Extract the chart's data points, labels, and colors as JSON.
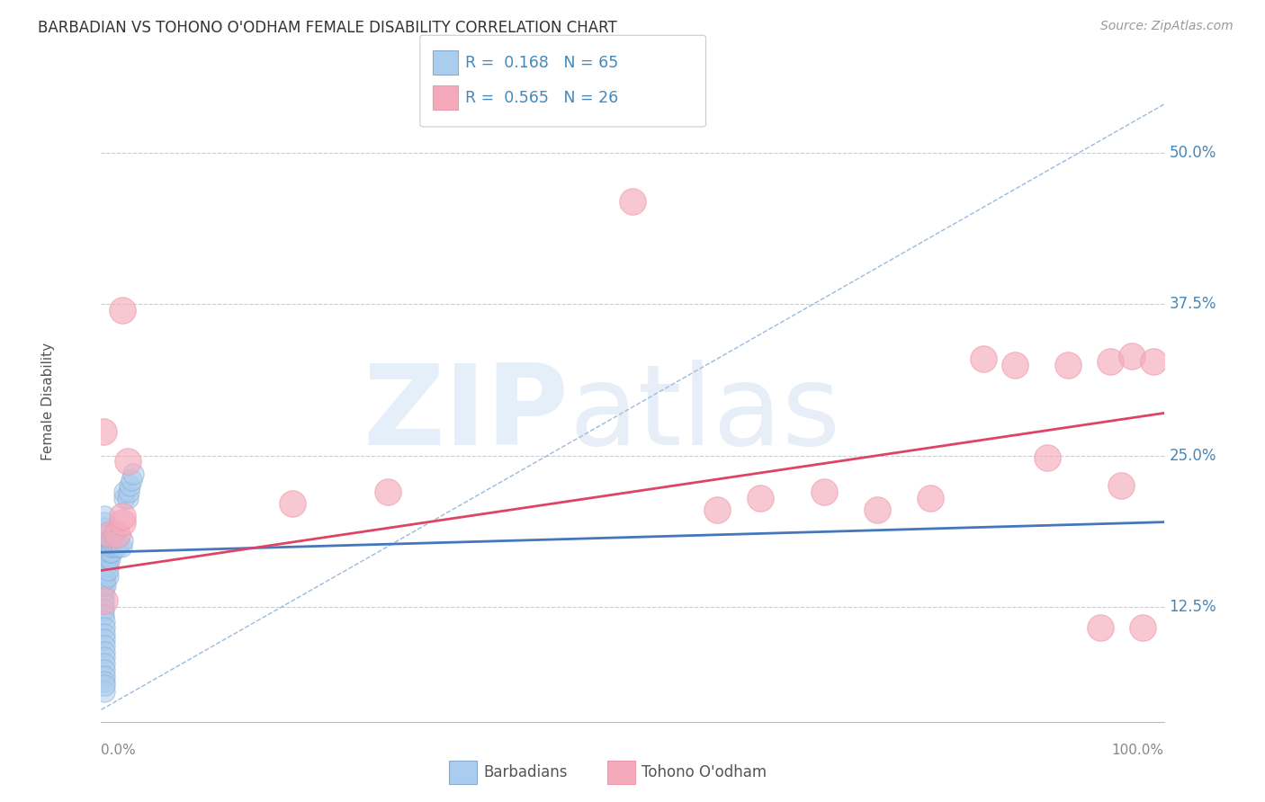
{
  "title": "BARBADIAN VS TOHONO O'ODHAM FEMALE DISABILITY CORRELATION CHART",
  "source": "Source: ZipAtlas.com",
  "ylabel": "Female Disability",
  "ytick_labels": [
    "12.5%",
    "25.0%",
    "37.5%",
    "50.0%"
  ],
  "ytick_values": [
    0.125,
    0.25,
    0.375,
    0.5
  ],
  "xmin": 0.0,
  "xmax": 1.0,
  "ymin": 0.03,
  "ymax": 0.56,
  "blue_fill": "#AACCEE",
  "blue_edge": "#88AACC",
  "pink_fill": "#F4AABB",
  "pink_edge": "#EE99AA",
  "blue_line": "#4477BB",
  "pink_line": "#DD4466",
  "diag_color": "#99BBDD",
  "legend_text_color": "#4488BB",
  "barbadians_x": [
    0.002,
    0.002,
    0.002,
    0.002,
    0.002,
    0.002,
    0.002,
    0.002,
    0.002,
    0.002,
    0.003,
    0.003,
    0.003,
    0.003,
    0.003,
    0.003,
    0.003,
    0.003,
    0.003,
    0.003,
    0.003,
    0.003,
    0.003,
    0.003,
    0.003,
    0.003,
    0.003,
    0.003,
    0.003,
    0.003,
    0.004,
    0.004,
    0.004,
    0.004,
    0.004,
    0.004,
    0.004,
    0.004,
    0.006,
    0.006,
    0.006,
    0.006,
    0.006,
    0.006,
    0.008,
    0.008,
    0.008,
    0.008,
    0.01,
    0.01,
    0.01,
    0.013,
    0.013,
    0.016,
    0.016,
    0.019,
    0.02,
    0.022,
    0.022,
    0.025,
    0.026,
    0.027,
    0.028,
    0.03
  ],
  "barbadians_y": [
    0.155,
    0.16,
    0.165,
    0.148,
    0.143,
    0.138,
    0.133,
    0.128,
    0.123,
    0.118,
    0.113,
    0.108,
    0.103,
    0.098,
    0.093,
    0.088,
    0.083,
    0.078,
    0.073,
    0.068,
    0.063,
    0.17,
    0.175,
    0.18,
    0.185,
    0.19,
    0.195,
    0.2,
    0.055,
    0.06,
    0.158,
    0.163,
    0.168,
    0.173,
    0.178,
    0.153,
    0.148,
    0.143,
    0.16,
    0.165,
    0.17,
    0.175,
    0.15,
    0.155,
    0.165,
    0.17,
    0.175,
    0.18,
    0.17,
    0.175,
    0.18,
    0.175,
    0.18,
    0.175,
    0.18,
    0.175,
    0.18,
    0.215,
    0.22,
    0.215,
    0.22,
    0.225,
    0.23,
    0.235
  ],
  "tohono_x": [
    0.002,
    0.003,
    0.008,
    0.015,
    0.02,
    0.02,
    0.02,
    0.025,
    0.18,
    0.5,
    0.58,
    0.62,
    0.68,
    0.73,
    0.78,
    0.83,
    0.86,
    0.89,
    0.91,
    0.94,
    0.95,
    0.96,
    0.97,
    0.98,
    0.99,
    0.27
  ],
  "tohono_y": [
    0.27,
    0.13,
    0.185,
    0.185,
    0.195,
    0.2,
    0.37,
    0.245,
    0.21,
    0.46,
    0.205,
    0.215,
    0.22,
    0.205,
    0.215,
    0.33,
    0.325,
    0.248,
    0.325,
    0.108,
    0.328,
    0.225,
    0.332,
    0.108,
    0.328,
    0.22
  ],
  "blue_trend_y0": 0.17,
  "blue_trend_y1": 0.195,
  "pink_trend_y0": 0.155,
  "pink_trend_y1": 0.285
}
